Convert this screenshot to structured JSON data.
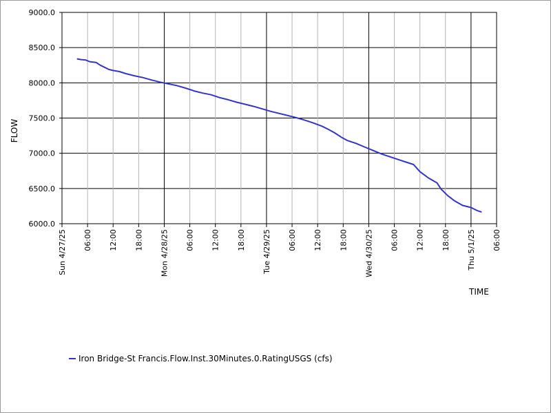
{
  "chart_data": {
    "type": "line",
    "xlabel": "TIME",
    "ylabel": "FLOW",
    "ylim": [
      6000,
      9000
    ],
    "y_ticks": [
      "6000.0",
      "6500.0",
      "7000.0",
      "7500.0",
      "8000.0",
      "8500.0",
      "9000.0"
    ],
    "x_ticks": [
      {
        "h": 0,
        "label": "Sun 4/27/25",
        "major": true
      },
      {
        "h": 6,
        "label": "06:00",
        "major": false
      },
      {
        "h": 12,
        "label": "12:00",
        "major": false
      },
      {
        "h": 18,
        "label": "18:00",
        "major": false
      },
      {
        "h": 24,
        "label": "Mon 4/28/25",
        "major": true
      },
      {
        "h": 30,
        "label": "06:00",
        "major": false
      },
      {
        "h": 36,
        "label": "12:00",
        "major": false
      },
      {
        "h": 42,
        "label": "18:00",
        "major": false
      },
      {
        "h": 48,
        "label": "Tue 4/29/25",
        "major": true
      },
      {
        "h": 54,
        "label": "06:00",
        "major": false
      },
      {
        "h": 60,
        "label": "12:00",
        "major": false
      },
      {
        "h": 66,
        "label": "18:00",
        "major": false
      },
      {
        "h": 72,
        "label": "Wed 4/30/25",
        "major": true
      },
      {
        "h": 78,
        "label": "06:00",
        "major": false
      },
      {
        "h": 84,
        "label": "12:00",
        "major": false
      },
      {
        "h": 90,
        "label": "18:00",
        "major": false
      },
      {
        "h": 96,
        "label": "Thu 5/1/25",
        "major": true
      },
      {
        "h": 102,
        "label": "06:00",
        "major": false
      }
    ],
    "xlim_hours": [
      0,
      102
    ],
    "grid": true,
    "legend_position": "bottom-left",
    "series": [
      {
        "name": "Iron Bridge-St Francis.Flow.Inst.30Minutes.0.RatingUSGS (cfs)",
        "color": "#3333cc",
        "points": [
          [
            3.5,
            8340
          ],
          [
            4.5,
            8330
          ],
          [
            5.5,
            8325
          ],
          [
            6.5,
            8300
          ],
          [
            8,
            8290
          ],
          [
            9,
            8250
          ],
          [
            10,
            8220
          ],
          [
            11,
            8190
          ],
          [
            12,
            8175
          ],
          [
            13.5,
            8160
          ],
          [
            15,
            8130
          ],
          [
            17,
            8100
          ],
          [
            19,
            8075
          ],
          [
            21,
            8040
          ],
          [
            23,
            8010
          ],
          [
            25,
            7985
          ],
          [
            27,
            7960
          ],
          [
            29,
            7925
          ],
          [
            31,
            7885
          ],
          [
            33,
            7855
          ],
          [
            35,
            7830
          ],
          [
            37,
            7790
          ],
          [
            39,
            7760
          ],
          [
            41,
            7725
          ],
          [
            43,
            7695
          ],
          [
            45,
            7665
          ],
          [
            47,
            7630
          ],
          [
            49,
            7595
          ],
          [
            51,
            7565
          ],
          [
            53,
            7535
          ],
          [
            55,
            7505
          ],
          [
            57,
            7470
          ],
          [
            59,
            7430
          ],
          [
            61,
            7385
          ],
          [
            62.5,
            7340
          ],
          [
            64,
            7290
          ],
          [
            65.5,
            7230
          ],
          [
            67,
            7180
          ],
          [
            69,
            7140
          ],
          [
            71,
            7090
          ],
          [
            73,
            7040
          ],
          [
            75,
            6990
          ],
          [
            77,
            6950
          ],
          [
            79,
            6910
          ],
          [
            81,
            6870
          ],
          [
            82.5,
            6840
          ],
          [
            84,
            6740
          ],
          [
            86,
            6650
          ],
          [
            88,
            6580
          ],
          [
            89,
            6490
          ],
          [
            90.5,
            6400
          ],
          [
            92,
            6330
          ],
          [
            94,
            6260
          ],
          [
            96,
            6230
          ],
          [
            97.5,
            6185
          ],
          [
            98.5,
            6165
          ]
        ]
      }
    ]
  }
}
